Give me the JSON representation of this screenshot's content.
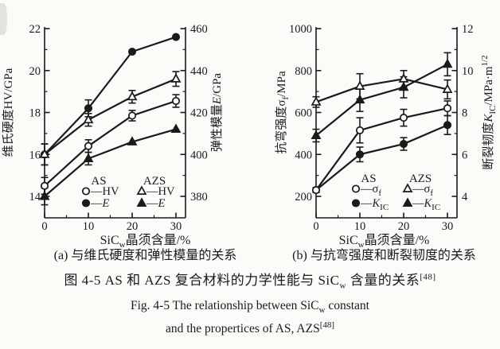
{
  "figure": {
    "caption_zh_pieces": [
      {
        "t": "图 4-5  AS 和 AZS 复合材料的力学性能与 SiC"
      },
      {
        "t": "w",
        "sub": true
      },
      {
        "t": " 含量的关系"
      },
      {
        "t": "[48]",
        "sup": true
      }
    ],
    "caption_en_line1_pieces": [
      {
        "t": "Fig. 4-5  The relationship between SiC"
      },
      {
        "t": "w",
        "sub": true
      },
      {
        "t": " constant"
      }
    ],
    "caption_en_line2_pieces": [
      {
        "t": "and the propertices of AS, AZS"
      },
      {
        "t": "[48]",
        "sup": true
      }
    ]
  },
  "chart_data": [
    {
      "type": "line",
      "panel": "a",
      "caption_pieces": [
        {
          "t": "(a) 与维氏硬度和弹性模量的关系"
        }
      ],
      "x": [
        0,
        10,
        20,
        30
      ],
      "xlim": [
        0,
        30
      ],
      "xticks": [
        0,
        10,
        20,
        30
      ],
      "xminor": [
        5,
        15,
        25
      ],
      "xlabel_pieces": [
        {
          "t": "SiC"
        },
        {
          "t": "w",
          "sub": true
        },
        {
          "t": "晶须含量/%"
        }
      ],
      "axes": {
        "left": {
          "label_pieces": [
            {
              "t": "维氏硬度HV/GPa"
            }
          ],
          "ticks": [
            14,
            16,
            18,
            20,
            22
          ],
          "minor_step": 1,
          "lim": [
            13,
            22
          ]
        },
        "right": {
          "label_pieces": [
            {
              "t": "弹性模量"
            },
            {
              "t": "E",
              "i": true
            },
            {
              "t": "/GPa"
            }
          ],
          "ticks": [
            380,
            400,
            420,
            440,
            460
          ],
          "minor_step": 10,
          "lim": [
            370,
            460
          ]
        }
      },
      "series": [
        {
          "id": "as-hv",
          "name": "AS HV",
          "axis": "left",
          "marker": "open-circle",
          "values": [
            14.5,
            16.4,
            17.85,
            18.55
          ],
          "errors": [
            0.4,
            0.3,
            0.25,
            0.3
          ],
          "legend_label_pieces": [
            {
              "t": "—HV"
            }
          ]
        },
        {
          "id": "azs-hv",
          "name": "AZS HV",
          "axis": "left",
          "marker": "open-triangle",
          "values": [
            16.0,
            17.65,
            18.75,
            19.6
          ],
          "errors": [
            0.5,
            0.3,
            0.3,
            0.35
          ],
          "legend_label_pieces": [
            {
              "t": "—HV"
            }
          ]
        },
        {
          "id": "as-e",
          "name": "AS E",
          "axis": "right",
          "marker": "filled-circle",
          "values": [
            400,
            422,
            449,
            456
          ],
          "errors": [
            5,
            4,
            0,
            0
          ],
          "legend_label_pieces": [
            {
              "t": "—"
            },
            {
              "t": "E",
              "i": true
            }
          ]
        },
        {
          "id": "azs-e",
          "name": "AZS E",
          "axis": "right",
          "marker": "filled-triangle",
          "values": [
            380,
            398,
            406,
            412
          ],
          "errors": [
            4,
            3,
            0,
            0
          ],
          "legend_label_pieces": [
            {
              "t": "—"
            },
            {
              "t": "E",
              "i": true
            }
          ]
        }
      ],
      "legend": {
        "headers": [
          "AS",
          "AZS"
        ],
        "columns": [
          [
            0,
            2
          ],
          [
            1,
            3
          ]
        ]
      },
      "grid": false
    },
    {
      "type": "line",
      "panel": "b",
      "caption_pieces": [
        {
          "t": "(b) 与抗弯强度和断裂韧度的关系"
        }
      ],
      "x": [
        0,
        10,
        20,
        30
      ],
      "xlim": [
        0,
        30
      ],
      "xticks": [
        0,
        10,
        20,
        30
      ],
      "xminor": [
        5,
        15,
        25
      ],
      "xlabel_pieces": [
        {
          "t": "SiC"
        },
        {
          "t": "w",
          "sub": true
        },
        {
          "t": "晶须含量/%"
        }
      ],
      "axes": {
        "left": {
          "label_pieces": [
            {
              "t": "抗弯强度σ"
            },
            {
              "t": "f",
              "sub": true
            },
            {
              "t": "/MPa"
            }
          ],
          "ticks": [
            200,
            400,
            600,
            800,
            1000
          ],
          "minor_step": 100,
          "lim": [
            100,
            1000
          ]
        },
        "right": {
          "label_pieces": [
            {
              "t": "断裂韧度"
            },
            {
              "t": "K",
              "i": true
            },
            {
              "t": "IC",
              "sub": true
            },
            {
              "t": "/MPa·m"
            },
            {
              "t": "1/2",
              "sup": true
            }
          ],
          "ticks": [
            4,
            6,
            8,
            10,
            12
          ],
          "minor_step": 1,
          "lim": [
            3,
            12
          ]
        }
      },
      "series": [
        {
          "id": "as-sigmaf",
          "name": "AS σf",
          "axis": "left",
          "marker": "open-circle",
          "values": [
            230,
            515,
            575,
            620
          ],
          "errors": [
            12,
            60,
            40,
            35
          ],
          "legend_label_pieces": [
            {
              "t": "—σ"
            },
            {
              "t": "f",
              "sub": true
            }
          ]
        },
        {
          "id": "azs-sigmaf",
          "name": "AZS σf",
          "axis": "left",
          "marker": "open-triangle",
          "values": [
            650,
            725,
            760,
            710
          ],
          "errors": [
            25,
            60,
            40,
            45
          ],
          "legend_label_pieces": [
            {
              "t": "—σ"
            },
            {
              "t": "f",
              "sub": true
            }
          ]
        },
        {
          "id": "as-kic",
          "name": "AS KIC",
          "axis": "right",
          "marker": "filled-circle",
          "values": [
            4.3,
            6.0,
            6.5,
            7.4
          ],
          "errors": [
            0,
            0.35,
            0.3,
            0.45
          ],
          "legend_label_pieces": [
            {
              "t": "—"
            },
            {
              "t": "K",
              "i": true
            },
            {
              "t": "IC",
              "sub": true
            }
          ]
        },
        {
          "id": "azs-kic",
          "name": "AZS KIC",
          "axis": "right",
          "marker": "filled-triangle",
          "values": [
            6.9,
            8.6,
            9.2,
            10.3
          ],
          "errors": [
            0.3,
            0.55,
            0.5,
            0.55
          ],
          "legend_label_pieces": [
            {
              "t": "—"
            },
            {
              "t": "K",
              "i": true
            },
            {
              "t": "IC",
              "sub": true
            }
          ]
        }
      ],
      "legend": {
        "headers": [
          "AS",
          "AZS"
        ],
        "columns": [
          [
            0,
            2
          ],
          [
            1,
            3
          ]
        ]
      },
      "grid": false
    }
  ]
}
